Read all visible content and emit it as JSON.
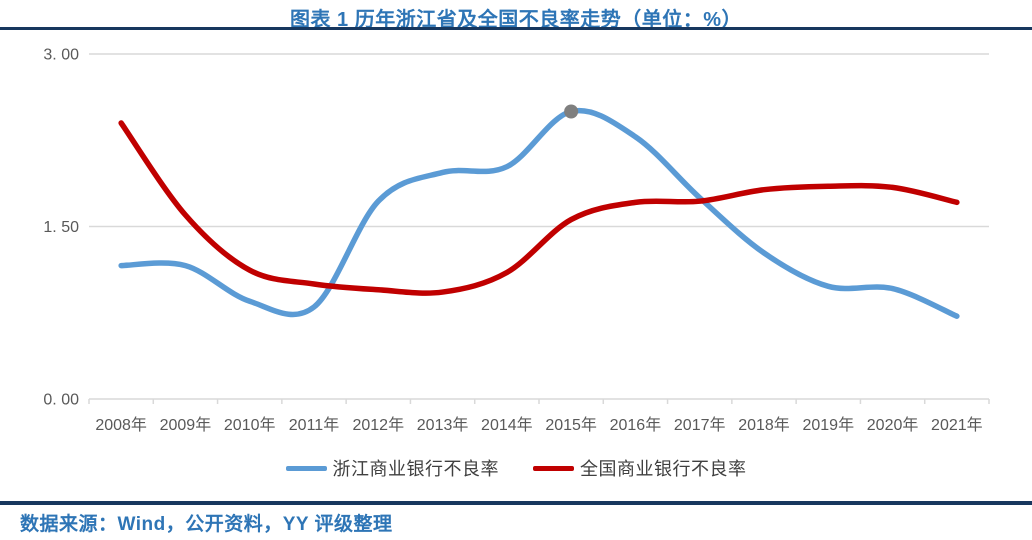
{
  "header": {
    "title": "图表 1 历年浙江省及全国不良率走势（单位：%）"
  },
  "footer": {
    "source_text": "数据来源：Wind，公开资料，YY 评级整理"
  },
  "colors": {
    "title_text": "#2E75B6",
    "divider": "#17375E",
    "grid": "#D9D9D9",
    "axis_text": "#595959",
    "legend_text": "#404040",
    "zhejiang_line": "#5B9BD5",
    "national_line": "#C00000",
    "peak_marker": "#7F7F7F"
  },
  "chart_data": {
    "type": "line",
    "title": "图表 1 历年浙江省及全国不良率走势（单位：%）",
    "unit": "%",
    "smooth_lines": true,
    "grid": "horizontal",
    "legend_position": "bottom",
    "categories": [
      "2008年",
      "2009年",
      "2010年",
      "2011年",
      "2012年",
      "2013年",
      "2014年",
      "2015年",
      "2016年",
      "2017年",
      "2018年",
      "2019年",
      "2020年",
      "2021年"
    ],
    "series": [
      {
        "id": "zhejiang",
        "name": "浙江商业银行不良率",
        "color": "#5B9BD5",
        "values": [
          1.16,
          1.16,
          0.85,
          0.8,
          1.72,
          1.97,
          2.02,
          2.5,
          2.28,
          1.75,
          1.27,
          0.98,
          0.96,
          0.72
        ],
        "peak_marker": {
          "index": 7,
          "color": "#7F7F7F"
        }
      },
      {
        "id": "national",
        "name": "全国商业银行不良率",
        "color": "#C00000",
        "values": [
          2.4,
          1.6,
          1.12,
          1.0,
          0.95,
          0.93,
          1.1,
          1.56,
          1.71,
          1.72,
          1.82,
          1.85,
          1.84,
          1.71
        ]
      }
    ],
    "y_axis": {
      "min": 0,
      "max": 3,
      "tick_values": [
        3,
        1.5,
        0
      ],
      "tick_labels": [
        "3. 00",
        "1. 50",
        "0. 00"
      ]
    }
  }
}
